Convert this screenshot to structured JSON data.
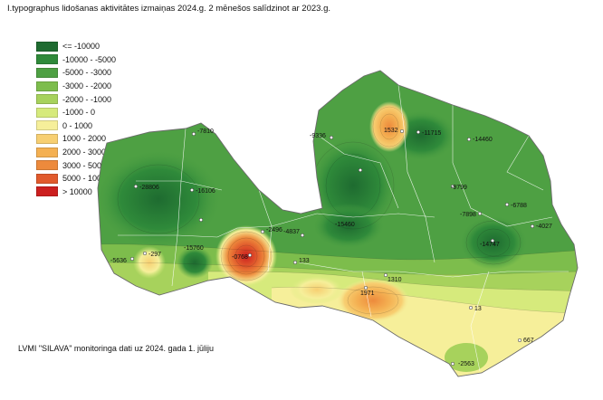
{
  "title": "I.typographus lidošanas aktivitātes izmaiņas 2024.g. 2 mēnešos salīdzinot ar 2023.g.",
  "legend": [
    {
      "label": "<= -10000",
      "color": "#1e6b30"
    },
    {
      "label": "-10000 - -5000",
      "color": "#2f8a3a"
    },
    {
      "label": "-5000 - -3000",
      "color": "#4ea043"
    },
    {
      "label": "-3000 - -2000",
      "color": "#7dbd4c"
    },
    {
      "label": "-2000 - -1000",
      "color": "#a7d25c"
    },
    {
      "label": "-1000 - 0",
      "color": "#d6ea7c"
    },
    {
      "label": "0 - 1000",
      "color": "#f6ef9a"
    },
    {
      "label": "1000 - 2000",
      "color": "#f7cf72"
    },
    {
      "label": "2000 - 3000",
      "color": "#f4b052"
    },
    {
      "label": "3000 - 5000",
      "color": "#ed8a3c"
    },
    {
      "label": "5000 - 10000",
      "color": "#e15a2c"
    },
    {
      "label": "> 10000",
      "color": "#cc1f1f"
    }
  ],
  "points": [
    {
      "value": "-7810"
    },
    {
      "value": "-9336"
    },
    {
      "value": "1532"
    },
    {
      "value": "-11715"
    },
    {
      "value": "-14460"
    },
    {
      "value": "-28806"
    },
    {
      "value": "-16106"
    },
    {
      "value": "-9799"
    },
    {
      "value": "-6788"
    },
    {
      "value": "-7898"
    },
    {
      "value": "-4027"
    },
    {
      "value": "-5636"
    },
    {
      "value": "-297"
    },
    {
      "value": "-15760"
    },
    {
      "value": "-0768"
    },
    {
      "value": "-2496"
    },
    {
      "value": "-4837"
    },
    {
      "value": "-15460"
    },
    {
      "value": "-14747"
    },
    {
      "value": "133"
    },
    {
      "value": "1310"
    },
    {
      "value": "1971"
    },
    {
      "value": "13"
    },
    {
      "value": "667"
    },
    {
      "value": "-2563"
    }
  ],
  "caption": "LVMI \"SILAVA\" monitoringa dati uz 2024. gada 1. jūliju"
}
